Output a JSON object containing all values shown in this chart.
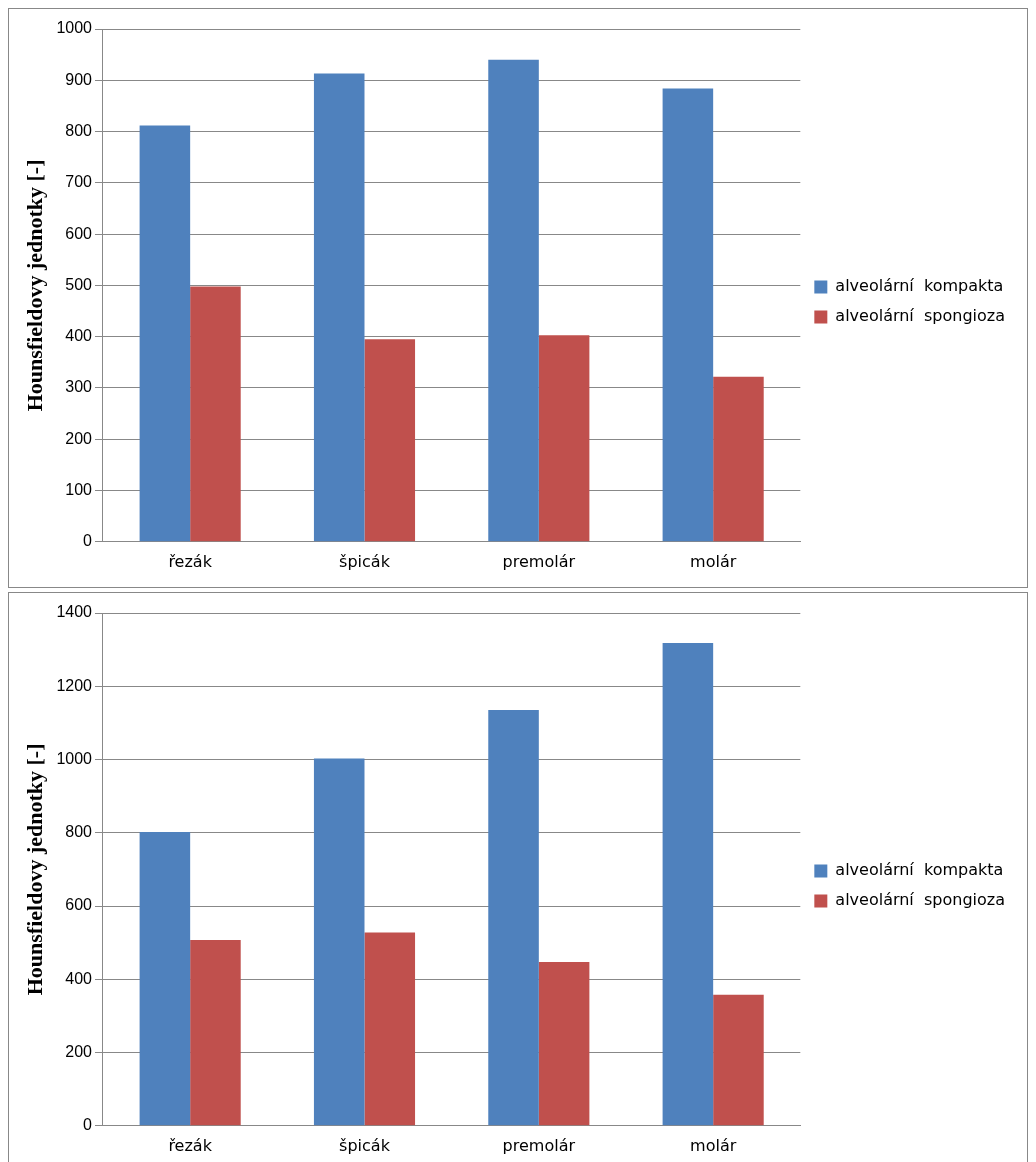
{
  "chart_data": [
    {
      "type": "bar",
      "ylabel": "Hounsfieldovy jednotky [-]",
      "categories": [
        "řezák",
        "špicák",
        "premolár",
        "molár"
      ],
      "series": [
        {
          "name": "alveolární  kompakta",
          "color": "#4f81bd",
          "values": [
            812,
            913,
            940,
            884
          ]
        },
        {
          "name": "alveolární  spongioza",
          "color": "#c0504d",
          "values": [
            498,
            395,
            403,
            322
          ]
        }
      ],
      "ylim": [
        0,
        1000
      ],
      "yticks": [
        0,
        100,
        200,
        300,
        400,
        500,
        600,
        700,
        800,
        900,
        1000
      ],
      "grid": "y",
      "legend": "right"
    },
    {
      "type": "bar",
      "ylabel": "Hounsfieldovy jednotky [-]",
      "categories": [
        "řezák",
        "špicák",
        "premolár",
        "molár"
      ],
      "series": [
        {
          "name": "alveolární  kompakta",
          "color": "#4f81bd",
          "values": [
            802,
            1003,
            1135,
            1318
          ]
        },
        {
          "name": "alveolární  spongioza",
          "color": "#c0504d",
          "values": [
            507,
            528,
            447,
            358
          ]
        }
      ],
      "ylim": [
        0,
        1400
      ],
      "yticks": [
        0,
        200,
        400,
        600,
        800,
        1000,
        1200,
        1400
      ],
      "grid": "y",
      "legend": "right"
    }
  ]
}
